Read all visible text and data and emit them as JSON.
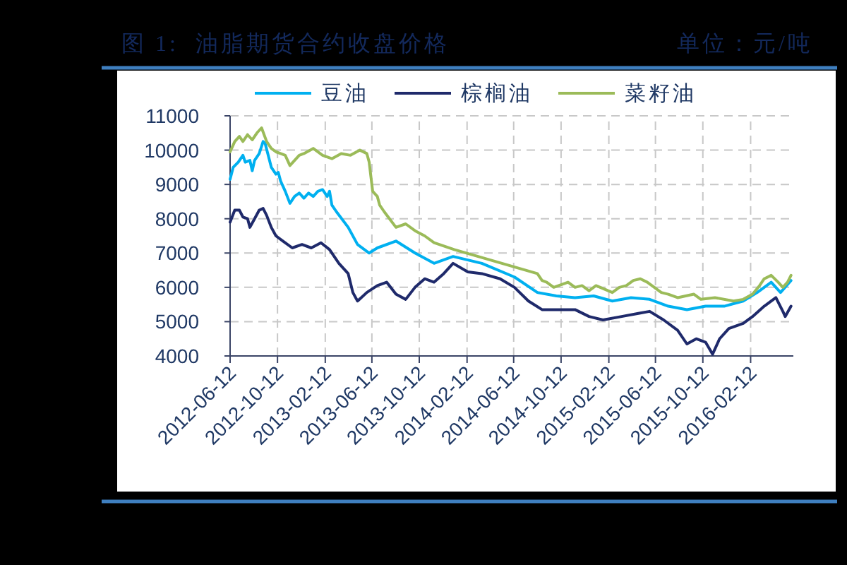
{
  "chart_data": {
    "type": "line",
    "title": "图 1:  油脂期货合约收盘价格",
    "annotations": [
      "单位：元/吨"
    ],
    "xlim": [
      "2012-06-12",
      "2016-06-01"
    ],
    "xticks": [
      "2012-06-12",
      "2012-10-12",
      "2013-02-12",
      "2013-06-12",
      "2013-10-12",
      "2014-02-12",
      "2014-06-12",
      "2014-10-12",
      "2015-02-12",
      "2015-06-12",
      "2015-10-12",
      "2016-02-12"
    ],
    "ylim": [
      4000,
      11000
    ],
    "yticks": [
      4000,
      5000,
      6000,
      7000,
      8000,
      9000,
      10000,
      11000
    ],
    "grid": true,
    "legend": "top",
    "line_style": "solid",
    "series": [
      {
        "name": "豆油",
        "color": "#00b0f0",
        "x": [
          "2012-06-12",
          "2012-06-20",
          "2012-07-03",
          "2012-07-15",
          "2012-07-21",
          "2012-08-02",
          "2012-08-08",
          "2012-08-14",
          "2012-08-26",
          "2012-09-05",
          "2012-09-10",
          "2012-09-17",
          "2012-09-26",
          "2012-10-08",
          "2012-10-14",
          "2012-10-20",
          "2012-11-01",
          "2012-11-13",
          "2012-11-25",
          "2012-12-07",
          "2012-12-19",
          "2012-12-31",
          "2013-01-12",
          "2013-01-24",
          "2013-02-05",
          "2013-02-17",
          "2013-02-23",
          "2013-03-01",
          "2013-03-13",
          "2013-04-12",
          "2013-05-06",
          "2013-06-05",
          "2013-06-26",
          "2013-08-13",
          "2013-10-01",
          "2013-11-19",
          "2014-01-07",
          "2014-03-22",
          "2014-06-14",
          "2014-08-12",
          "2014-09-30",
          "2014-11-17",
          "2015-01-04",
          "2015-02-21",
          "2015-04-10",
          "2015-05-28",
          "2015-07-15",
          "2015-09-01",
          "2015-10-19",
          "2015-12-06",
          "2016-01-24",
          "2016-02-29",
          "2016-04-05",
          "2016-04-29",
          "2016-05-26"
        ],
        "values": [
          9150,
          9500,
          9650,
          9850,
          9650,
          9700,
          9400,
          9700,
          9900,
          10250,
          10200,
          9900,
          9500,
          9300,
          9350,
          9100,
          8800,
          8450,
          8650,
          8750,
          8600,
          8750,
          8650,
          8800,
          8850,
          8650,
          8800,
          8400,
          8200,
          7750,
          7250,
          7000,
          7150,
          7350,
          7000,
          6700,
          6900,
          6700,
          6300,
          5850,
          5750,
          5700,
          5750,
          5600,
          5700,
          5650,
          5450,
          5350,
          5450,
          5450,
          5600,
          5850,
          6150,
          5850,
          6200
        ]
      },
      {
        "name": "棕榈油",
        "color": "#1f2a6b",
        "x": [
          "2012-06-12",
          "2012-06-24",
          "2012-07-06",
          "2012-07-15",
          "2012-07-27",
          "2012-08-02",
          "2012-08-14",
          "2012-08-26",
          "2012-09-05",
          "2012-09-14",
          "2012-09-26",
          "2012-10-08",
          "2012-10-26",
          "2012-11-19",
          "2012-12-14",
          "2013-01-07",
          "2013-02-01",
          "2013-02-23",
          "2013-03-19",
          "2013-04-12",
          "2013-04-24",
          "2013-05-06",
          "2013-05-30",
          "2013-06-26",
          "2013-07-20",
          "2013-08-13",
          "2013-09-07",
          "2013-10-01",
          "2013-10-26",
          "2013-11-19",
          "2013-12-14",
          "2014-01-07",
          "2014-02-14",
          "2014-03-22",
          "2014-05-08",
          "2014-06-14",
          "2014-07-20",
          "2014-08-24",
          "2014-09-30",
          "2014-11-17",
          "2014-12-23",
          "2015-01-28",
          "2015-03-17",
          "2015-05-04",
          "2015-05-28",
          "2015-07-03",
          "2015-08-08",
          "2015-09-01",
          "2015-09-25",
          "2015-10-19",
          "2015-11-06",
          "2015-11-24",
          "2015-12-18",
          "2016-01-24",
          "2016-02-17",
          "2016-03-18",
          "2016-04-17",
          "2016-05-05",
          "2016-05-11",
          "2016-05-26"
        ],
        "values": [
          7900,
          8250,
          8250,
          8050,
          8000,
          7750,
          8000,
          8250,
          8300,
          8100,
          7750,
          7500,
          7350,
          7150,
          7250,
          7150,
          7300,
          7100,
          6700,
          6400,
          5850,
          5600,
          5850,
          6050,
          6150,
          5800,
          5650,
          6000,
          6250,
          6150,
          6400,
          6700,
          6450,
          6400,
          6250,
          6000,
          5600,
          5350,
          5350,
          5350,
          5150,
          5050,
          5150,
          5250,
          5300,
          5050,
          4750,
          4350,
          4500,
          4400,
          4050,
          4500,
          4800,
          4950,
          5150,
          5450,
          5700,
          5300,
          5150,
          5450
        ]
      },
      {
        "name": "菜籽油",
        "color": "#9bbb59",
        "x": [
          "2012-06-12",
          "2012-06-24",
          "2012-07-06",
          "2012-07-15",
          "2012-07-27",
          "2012-08-08",
          "2012-08-20",
          "2012-09-01",
          "2012-09-14",
          "2012-09-26",
          "2012-10-08",
          "2012-10-20",
          "2012-11-01",
          "2012-11-13",
          "2012-11-25",
          "2012-12-07",
          "2012-12-19",
          "2013-01-12",
          "2013-02-05",
          "2013-03-01",
          "2013-03-25",
          "2013-04-18",
          "2013-05-12",
          "2013-05-30",
          "2013-06-05",
          "2013-06-14",
          "2013-06-26",
          "2013-07-02",
          "2013-07-14",
          "2013-08-13",
          "2013-09-07",
          "2013-10-01",
          "2013-10-26",
          "2013-11-19",
          "2014-01-10",
          "2014-08-12",
          "2014-08-24",
          "2014-09-05",
          "2014-09-23",
          "2014-10-30",
          "2014-11-17",
          "2014-12-05",
          "2014-12-23",
          "2015-01-10",
          "2015-02-21",
          "2015-03-11",
          "2015-03-29",
          "2015-04-16",
          "2015-05-04",
          "2015-05-22",
          "2015-06-09",
          "2015-06-27",
          "2015-07-15",
          "2015-08-08",
          "2015-09-19",
          "2015-10-07",
          "2015-11-12",
          "2015-12-30",
          "2016-01-24",
          "2016-02-17",
          "2016-03-06",
          "2016-03-18",
          "2016-04-05",
          "2016-04-23",
          "2016-05-05",
          "2016-05-17",
          "2016-05-26"
        ],
        "values": [
          9950,
          10250,
          10400,
          10250,
          10450,
          10300,
          10500,
          10650,
          10250,
          10050,
          9950,
          9900,
          9850,
          9550,
          9700,
          9850,
          9900,
          10050,
          9850,
          9750,
          9900,
          9850,
          10000,
          9900,
          9650,
          8800,
          8650,
          8400,
          8200,
          7750,
          7850,
          7650,
          7500,
          7300,
          7100,
          6400,
          6200,
          6150,
          6000,
          6150,
          6000,
          6050,
          5900,
          6050,
          5850,
          6000,
          6050,
          6200,
          6250,
          6150,
          6000,
          5850,
          5800,
          5700,
          5800,
          5650,
          5700,
          5600,
          5650,
          5800,
          6050,
          6250,
          6350,
          6150,
          6000,
          6150,
          6350
        ]
      }
    ]
  }
}
